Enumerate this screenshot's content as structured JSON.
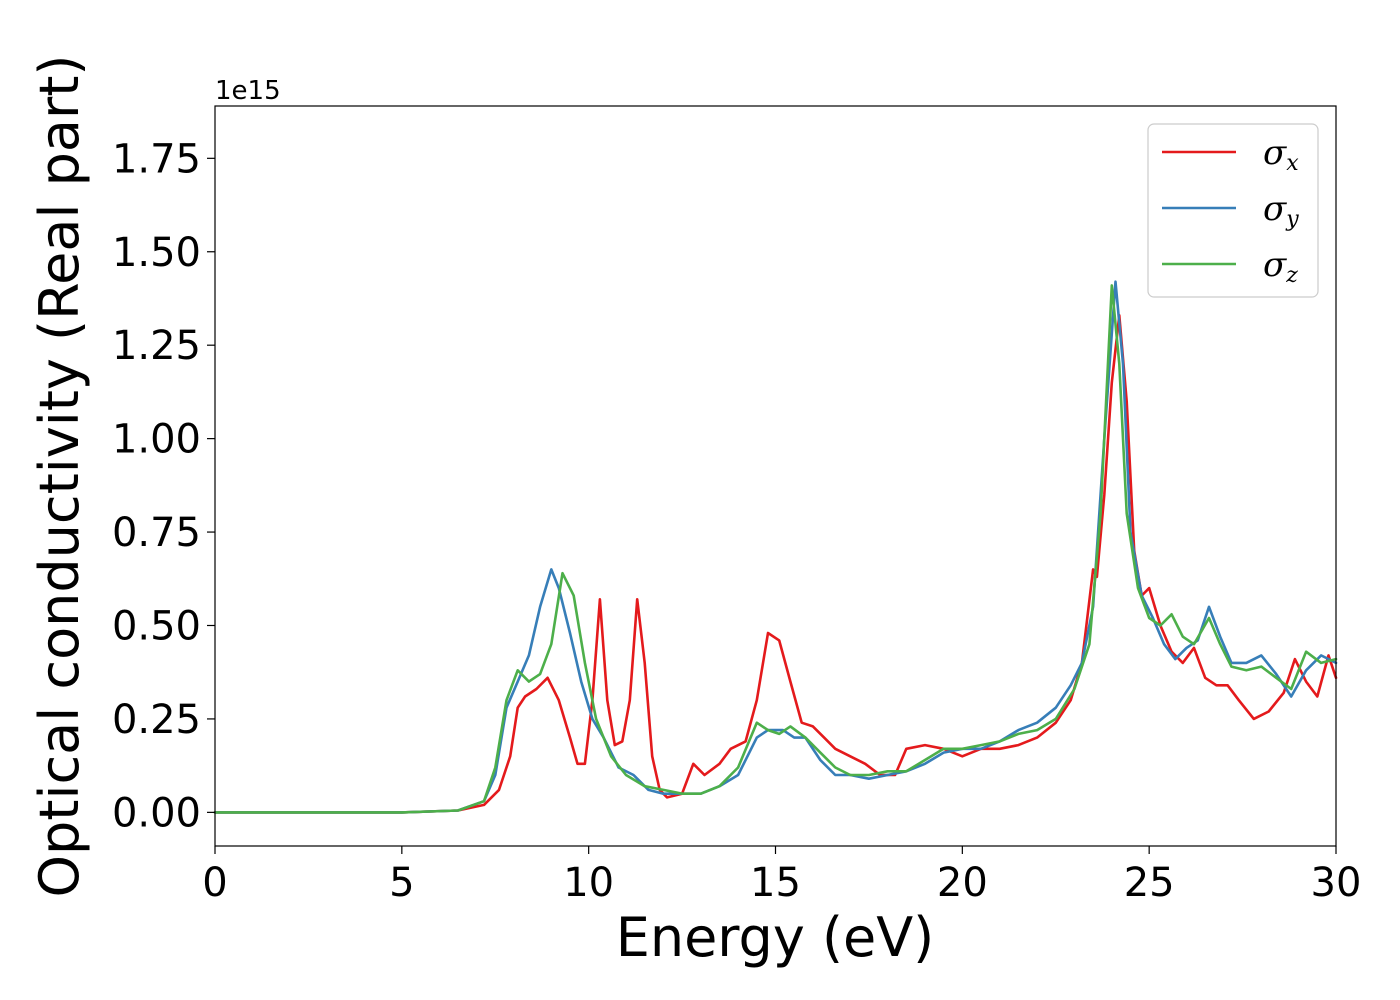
{
  "chart_data": {
    "type": "line",
    "xlabel": "Energy (eV)",
    "ylabel": "Optical conductivity (Real part)",
    "y_offset_label": "1e15",
    "xlim": [
      0,
      30
    ],
    "ylim": [
      -0.09,
      1.89
    ],
    "x_ticks": [
      0,
      5,
      10,
      15,
      20,
      25,
      30
    ],
    "x_tick_labels": [
      "0",
      "5",
      "10",
      "15",
      "20",
      "25",
      "30"
    ],
    "y_ticks": [
      0,
      0.25,
      0.5,
      0.75,
      1.0,
      1.25,
      1.5,
      1.75
    ],
    "y_tick_labels": [
      "0.00",
      "0.25",
      "0.50",
      "0.75",
      "1.00",
      "1.25",
      "1.50",
      "1.75"
    ],
    "grid": false,
    "legend_position": "top-right",
    "series": [
      {
        "name": "σx",
        "symbol": "σ",
        "subscript": "x",
        "color": "#e41a1c",
        "points": [
          [
            0,
            0
          ],
          [
            5,
            0
          ],
          [
            6.5,
            0.005
          ],
          [
            7.2,
            0.02
          ],
          [
            7.6,
            0.06
          ],
          [
            7.9,
            0.15
          ],
          [
            8.1,
            0.28
          ],
          [
            8.3,
            0.31
          ],
          [
            8.6,
            0.33
          ],
          [
            8.9,
            0.36
          ],
          [
            9.2,
            0.3
          ],
          [
            9.5,
            0.2
          ],
          [
            9.7,
            0.13
          ],
          [
            9.9,
            0.13
          ],
          [
            10.1,
            0.3
          ],
          [
            10.3,
            0.57
          ],
          [
            10.5,
            0.3
          ],
          [
            10.7,
            0.18
          ],
          [
            10.9,
            0.19
          ],
          [
            11.1,
            0.3
          ],
          [
            11.3,
            0.57
          ],
          [
            11.5,
            0.4
          ],
          [
            11.7,
            0.15
          ],
          [
            11.9,
            0.06
          ],
          [
            12.1,
            0.04
          ],
          [
            12.5,
            0.05
          ],
          [
            12.8,
            0.13
          ],
          [
            13.1,
            0.1
          ],
          [
            13.5,
            0.13
          ],
          [
            13.8,
            0.17
          ],
          [
            14.2,
            0.19
          ],
          [
            14.5,
            0.3
          ],
          [
            14.8,
            0.48
          ],
          [
            15.1,
            0.46
          ],
          [
            15.4,
            0.35
          ],
          [
            15.7,
            0.24
          ],
          [
            16.0,
            0.23
          ],
          [
            16.3,
            0.2
          ],
          [
            16.6,
            0.17
          ],
          [
            17.0,
            0.15
          ],
          [
            17.4,
            0.13
          ],
          [
            17.8,
            0.1
          ],
          [
            18.2,
            0.1
          ],
          [
            18.5,
            0.17
          ],
          [
            19.0,
            0.18
          ],
          [
            19.5,
            0.17
          ],
          [
            20.0,
            0.15
          ],
          [
            20.5,
            0.17
          ],
          [
            21.0,
            0.17
          ],
          [
            21.5,
            0.18
          ],
          [
            22.0,
            0.2
          ],
          [
            22.5,
            0.24
          ],
          [
            22.9,
            0.3
          ],
          [
            23.2,
            0.4
          ],
          [
            23.5,
            0.65
          ],
          [
            23.6,
            0.63
          ],
          [
            23.8,
            0.85
          ],
          [
            24.0,
            1.15
          ],
          [
            24.2,
            1.33
          ],
          [
            24.4,
            1.1
          ],
          [
            24.6,
            0.7
          ],
          [
            24.8,
            0.58
          ],
          [
            25.0,
            0.6
          ],
          [
            25.3,
            0.5
          ],
          [
            25.6,
            0.43
          ],
          [
            25.9,
            0.4
          ],
          [
            26.2,
            0.44
          ],
          [
            26.5,
            0.36
          ],
          [
            26.8,
            0.34
          ],
          [
            27.1,
            0.34
          ],
          [
            27.4,
            0.3
          ],
          [
            27.8,
            0.25
          ],
          [
            28.2,
            0.27
          ],
          [
            28.6,
            0.32
          ],
          [
            28.9,
            0.41
          ],
          [
            29.2,
            0.35
          ],
          [
            29.5,
            0.31
          ],
          [
            29.8,
            0.42
          ],
          [
            30,
            0.36
          ]
        ]
      },
      {
        "name": "σy",
        "symbol": "σ",
        "subscript": "y",
        "color": "#377eb8",
        "points": [
          [
            0,
            0
          ],
          [
            5,
            0
          ],
          [
            6.5,
            0.005
          ],
          [
            7.2,
            0.03
          ],
          [
            7.5,
            0.1
          ],
          [
            7.8,
            0.28
          ],
          [
            8.1,
            0.35
          ],
          [
            8.4,
            0.42
          ],
          [
            8.7,
            0.55
          ],
          [
            9.0,
            0.65
          ],
          [
            9.2,
            0.6
          ],
          [
            9.5,
            0.48
          ],
          [
            9.8,
            0.35
          ],
          [
            10.1,
            0.25
          ],
          [
            10.4,
            0.2
          ],
          [
            10.8,
            0.12
          ],
          [
            11.2,
            0.1
          ],
          [
            11.6,
            0.06
          ],
          [
            12.0,
            0.05
          ],
          [
            12.5,
            0.05
          ],
          [
            13.0,
            0.05
          ],
          [
            13.5,
            0.07
          ],
          [
            14.0,
            0.1
          ],
          [
            14.5,
            0.2
          ],
          [
            14.8,
            0.22
          ],
          [
            15.2,
            0.22
          ],
          [
            15.5,
            0.2
          ],
          [
            15.8,
            0.2
          ],
          [
            16.2,
            0.14
          ],
          [
            16.6,
            0.1
          ],
          [
            17.0,
            0.1
          ],
          [
            17.5,
            0.09
          ],
          [
            18.0,
            0.1
          ],
          [
            18.5,
            0.11
          ],
          [
            19.0,
            0.13
          ],
          [
            19.5,
            0.16
          ],
          [
            20.0,
            0.17
          ],
          [
            20.5,
            0.17
          ],
          [
            21.0,
            0.19
          ],
          [
            21.5,
            0.22
          ],
          [
            22.0,
            0.24
          ],
          [
            22.5,
            0.28
          ],
          [
            22.9,
            0.34
          ],
          [
            23.2,
            0.4
          ],
          [
            23.5,
            0.55
          ],
          [
            23.8,
            1.0
          ],
          [
            24.1,
            1.42
          ],
          [
            24.3,
            1.2
          ],
          [
            24.5,
            0.75
          ],
          [
            24.8,
            0.58
          ],
          [
            25.1,
            0.52
          ],
          [
            25.4,
            0.45
          ],
          [
            25.7,
            0.41
          ],
          [
            26.0,
            0.44
          ],
          [
            26.3,
            0.46
          ],
          [
            26.6,
            0.55
          ],
          [
            26.9,
            0.47
          ],
          [
            27.2,
            0.4
          ],
          [
            27.6,
            0.4
          ],
          [
            28.0,
            0.42
          ],
          [
            28.4,
            0.37
          ],
          [
            28.8,
            0.31
          ],
          [
            29.2,
            0.38
          ],
          [
            29.6,
            0.42
          ],
          [
            30,
            0.4
          ]
        ]
      },
      {
        "name": "σz",
        "symbol": "σ",
        "subscript": "z",
        "color": "#4daf4a",
        "points": [
          [
            0,
            0
          ],
          [
            5,
            0
          ],
          [
            6.5,
            0.005
          ],
          [
            7.2,
            0.03
          ],
          [
            7.5,
            0.12
          ],
          [
            7.8,
            0.3
          ],
          [
            8.1,
            0.38
          ],
          [
            8.4,
            0.35
          ],
          [
            8.7,
            0.37
          ],
          [
            9.0,
            0.45
          ],
          [
            9.3,
            0.64
          ],
          [
            9.6,
            0.58
          ],
          [
            9.9,
            0.4
          ],
          [
            10.2,
            0.25
          ],
          [
            10.6,
            0.15
          ],
          [
            11.0,
            0.1
          ],
          [
            11.5,
            0.07
          ],
          [
            12.0,
            0.06
          ],
          [
            12.5,
            0.05
          ],
          [
            13.0,
            0.05
          ],
          [
            13.5,
            0.07
          ],
          [
            14.0,
            0.12
          ],
          [
            14.5,
            0.24
          ],
          [
            14.8,
            0.22
          ],
          [
            15.1,
            0.21
          ],
          [
            15.4,
            0.23
          ],
          [
            15.8,
            0.2
          ],
          [
            16.2,
            0.16
          ],
          [
            16.6,
            0.12
          ],
          [
            17.0,
            0.1
          ],
          [
            17.5,
            0.1
          ],
          [
            18.0,
            0.11
          ],
          [
            18.5,
            0.11
          ],
          [
            19.0,
            0.14
          ],
          [
            19.5,
            0.17
          ],
          [
            20.0,
            0.17
          ],
          [
            20.5,
            0.18
          ],
          [
            21.0,
            0.19
          ],
          [
            21.5,
            0.21
          ],
          [
            22.0,
            0.22
          ],
          [
            22.5,
            0.25
          ],
          [
            23.0,
            0.33
          ],
          [
            23.4,
            0.45
          ],
          [
            23.7,
            0.8
          ],
          [
            24.0,
            1.41
          ],
          [
            24.2,
            1.2
          ],
          [
            24.4,
            0.8
          ],
          [
            24.7,
            0.6
          ],
          [
            25.0,
            0.52
          ],
          [
            25.3,
            0.5
          ],
          [
            25.6,
            0.53
          ],
          [
            25.9,
            0.47
          ],
          [
            26.2,
            0.45
          ],
          [
            26.6,
            0.52
          ],
          [
            26.9,
            0.45
          ],
          [
            27.2,
            0.39
          ],
          [
            27.6,
            0.38
          ],
          [
            28.0,
            0.39
          ],
          [
            28.4,
            0.36
          ],
          [
            28.8,
            0.33
          ],
          [
            29.2,
            0.43
          ],
          [
            29.6,
            0.4
          ],
          [
            30,
            0.41
          ]
        ]
      }
    ]
  }
}
